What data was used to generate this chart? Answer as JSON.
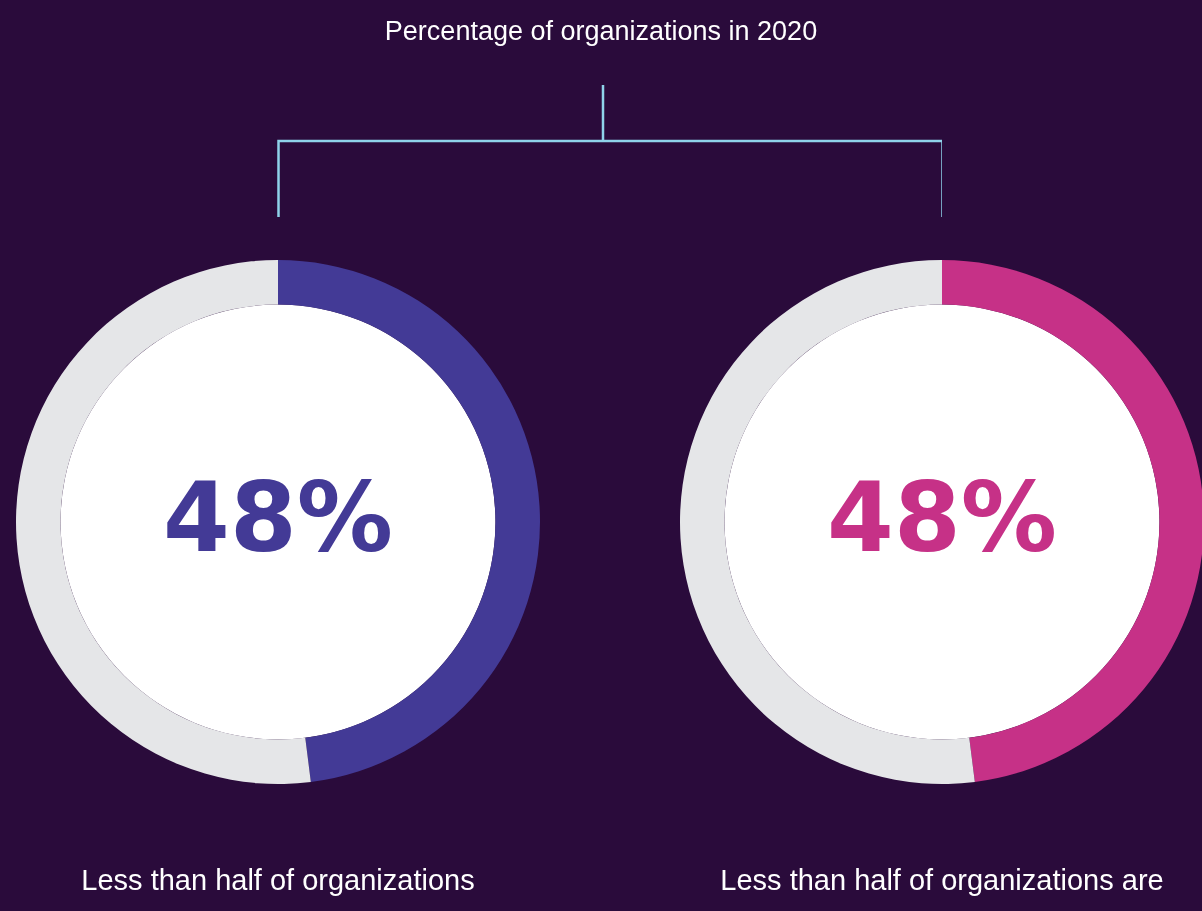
{
  "chart_data": [
    {
      "type": "other",
      "title": "Percentage of organizations in 2020"
    },
    {
      "type": "donut",
      "categories": [
        null,
        null
      ],
      "values": [
        48,
        52
      ],
      "colors": [
        "#433a96",
        "#e5e6e8"
      ],
      "value_labels": [
        "48%",
        null
      ],
      "annotations": [
        "Less than half of organizations"
      ]
    },
    {
      "type": "donut",
      "categories": [
        null,
        null
      ],
      "values": [
        48,
        52
      ],
      "colors": [
        "#c63187",
        "#e5e6e8"
      ],
      "value_labels": [
        "48%",
        null
      ],
      "annotations": [
        "Less than half of organizations are"
      ]
    }
  ]
}
